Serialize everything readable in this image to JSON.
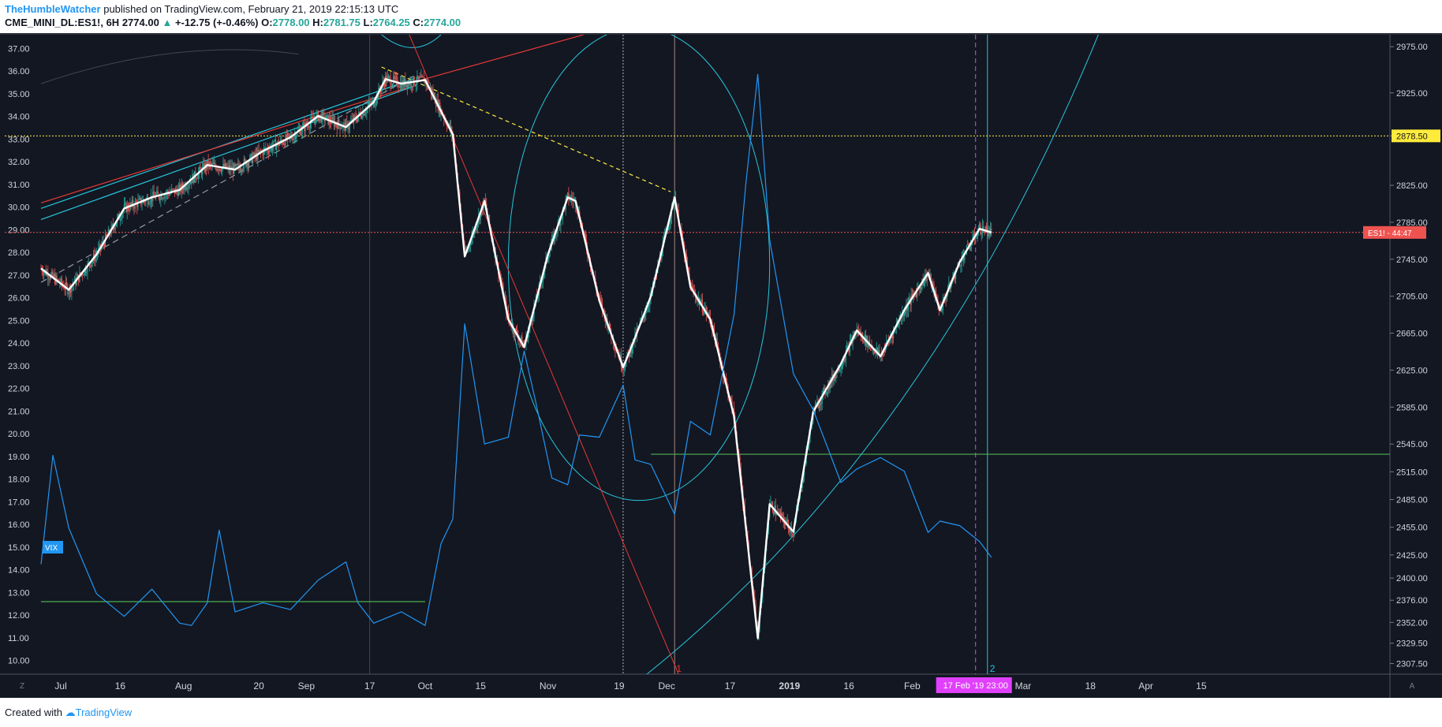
{
  "header": {
    "author": "TheHumbleWatcher",
    "published": "published on TradingView.com, February 21, 2019 22:15:13 UTC",
    "symbol": "CME_MINI_DL:ES1!, 6H",
    "last": "2774.00",
    "change": "+-12.75 (+-0.46%)",
    "o_label": "O:",
    "o": "2778.00",
    "h_label": "H:",
    "h": "2781.75",
    "l_label": "L:",
    "l": "2764.25",
    "c_label": "C:",
    "c": "2774.00"
  },
  "footer": {
    "created_with": "Created with",
    "brand": "TradingView"
  },
  "colors": {
    "background": "#131722",
    "up_candle": "#26a69a",
    "down_candle": "#ef5350",
    "vix_line": "#2196f3",
    "cyan": "#26c6da",
    "red": "#e53935",
    "yellow": "#ffeb3b",
    "green_line": "#4caf50",
    "magenta": "#e040fb",
    "zigzag": "#ffffff"
  },
  "chart_data": {
    "type": "line",
    "title": "CME_MINI_DL:ES1!, 6H",
    "x_tick_labels": [
      "Jul",
      "16",
      "Aug",
      "20",
      "Sep",
      "17",
      "Oct",
      "15",
      "Nov",
      "19",
      "Dec",
      "17",
      "2019",
      "16",
      "Feb",
      "17 Feb '19   23:00",
      "Mar",
      "18",
      "Apr",
      "15"
    ],
    "left_axis_ticks": [
      "37.00",
      "36.00",
      "35.00",
      "34.00",
      "33.00",
      "32.00",
      "31.00",
      "30.00",
      "29.00",
      "28.00",
      "27.00",
      "26.00",
      "25.00",
      "24.00",
      "23.00",
      "22.00",
      "21.00",
      "20.00",
      "19.00",
      "18.00",
      "17.00",
      "16.00",
      "15.00",
      "14.00",
      "13.00",
      "12.00",
      "11.00",
      "10.00"
    ],
    "right_axis_ticks": [
      "2975.00",
      "2925.00",
      "2878.50",
      "2825.00",
      "2785.00",
      "2745.00",
      "2705.00",
      "2665.00",
      "2625.00",
      "2585.00",
      "2545.00",
      "2515.00",
      "2485.00",
      "2455.00",
      "2425.00",
      "2400.00",
      "2376.00",
      "2352.00",
      "2329.50",
      "2307.50"
    ],
    "left_axis_range": [
      9.4,
      37.6
    ],
    "right_axis_range": [
      2296,
      2988
    ],
    "series": [
      {
        "name": "ES1!",
        "axis": "right",
        "x": [
          "Jun 26",
          "Jul 3",
          "Jul 10",
          "Jul 17",
          "Jul 24",
          "Jul 31",
          "Aug 7",
          "Aug 14",
          "Aug 21",
          "Aug 28",
          "Sep 4",
          "Sep 11",
          "Sep 18",
          "Sep 21",
          "Sep 25",
          "Oct 1",
          "Oct 8",
          "Oct 11",
          "Oct 16",
          "Oct 22",
          "Oct 26",
          "Nov 1",
          "Nov 6",
          "Nov 8",
          "Nov 14",
          "Nov 20",
          "Nov 23",
          "Nov 27",
          "Dec 3",
          "Dec 7",
          "Dec 12",
          "Dec 18",
          "Dec 21",
          "Dec 24",
          "Dec 27",
          "Jan 2",
          "Jan 7",
          "Jan 14",
          "Jan 18",
          "Jan 24",
          "Jan 30",
          "Feb 5",
          "Feb 8",
          "Feb 13",
          "Feb 18",
          "Feb 21"
        ],
        "values": [
          2735,
          2712,
          2750,
          2800,
          2812,
          2820,
          2847,
          2842,
          2862,
          2877,
          2900,
          2888,
          2915,
          2940,
          2935,
          2939,
          2880,
          2748,
          2808,
          2680,
          2650,
          2750,
          2812,
          2808,
          2700,
          2628,
          2660,
          2705,
          2812,
          2715,
          2680,
          2575,
          2455,
          2335,
          2480,
          2450,
          2580,
          2632,
          2668,
          2640,
          2690,
          2730,
          2690,
          2742,
          2778,
          2774
        ]
      },
      {
        "name": "VIX",
        "axis": "left",
        "x": [
          "Jun 26",
          "Jun 29",
          "Jul 3",
          "Jul 10",
          "Jul 17",
          "Jul 24",
          "Jul 31",
          "Aug 3",
          "Aug 7",
          "Aug 10",
          "Aug 14",
          "Aug 21",
          "Aug 28",
          "Sep 4",
          "Sep 11",
          "Sep 14",
          "Sep 18",
          "Sep 25",
          "Oct 1",
          "Oct 5",
          "Oct 8",
          "Oct 11",
          "Oct 16",
          "Oct 22",
          "Oct 26",
          "Oct 29",
          "Nov 2",
          "Nov 6",
          "Nov 9",
          "Nov 14",
          "Nov 20",
          "Nov 23",
          "Nov 27",
          "Dec 3",
          "Dec 7",
          "Dec 12",
          "Dec 18",
          "Dec 21",
          "Dec 24",
          "Dec 27",
          "Jan 2",
          "Jan 7",
          "Jan 14",
          "Jan 18",
          "Jan 24",
          "Jan 30",
          "Feb 5",
          "Feb 8",
          "Feb 13",
          "Feb 18",
          "Feb 21"
        ],
        "values": [
          14.6,
          18.7,
          16.2,
          12.6,
          12.3,
          12.8,
          12.0,
          11.2,
          12.9,
          15.4,
          12.5,
          12.2,
          12.6,
          13.2,
          14.7,
          12.2,
          12.0,
          11.8,
          11.9,
          14.8,
          16.6,
          24.5,
          19.9,
          19.5,
          24.0,
          21.0,
          18.4,
          17.4,
          20.3,
          19.5,
          22.5,
          18.5,
          19.0,
          16.1,
          20.9,
          19.6,
          25.6,
          30.7,
          36.2,
          28.2,
          23.0,
          20.7,
          18.2,
          18.1,
          19.3,
          18.0,
          16.0,
          15.8,
          16.3,
          14.9,
          14.9
        ]
      }
    ],
    "price_levels": [
      {
        "label": "2878.50",
        "value": 2878.5,
        "color": "#ffeb3b"
      },
      {
        "label": "ES1!",
        "value": 2774,
        "color": "#ef5350",
        "countdown": "44:47"
      }
    ],
    "vix_levels": [
      12.6,
      19.1
    ],
    "annotations": [
      "VIX",
      "1",
      "2",
      "Z",
      "A"
    ],
    "grid": true,
    "legend": "none"
  }
}
